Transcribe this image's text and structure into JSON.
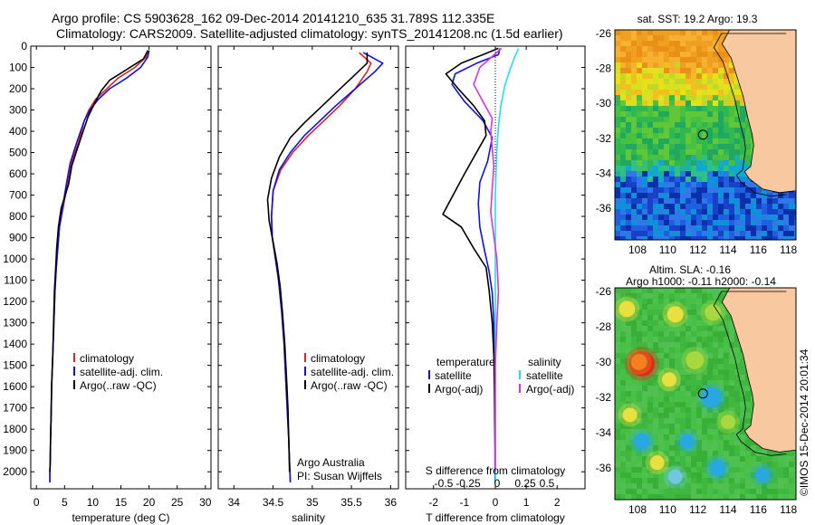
{
  "header": {
    "line1": "Argo profile: CS 5903628_162 09-Dec-2014 20141210_635 31.789S 112.335E",
    "line2": "Climatology: CARS2009. Satellite-adjusted climatology: synTS_20141208.nc (1.5d earlier)"
  },
  "credit": "©IMOS 15-Dec-2014 20:01:34",
  "colors": {
    "climatology": "#dd2222",
    "satellite": "#1111dd",
    "argo": "#000000",
    "salinity_satellite": "#22e0e8",
    "salinity_argo": "#dd33dd",
    "land": "#f8c8a0"
  },
  "chart_data": [
    {
      "type": "line",
      "id": "temperature",
      "xlabel": "temperature (deg C)",
      "ylabel": "",
      "xlim": [
        -1,
        31
      ],
      "ylim": [
        2080,
        0
      ],
      "xticks": [
        0,
        5,
        10,
        15,
        20,
        25,
        30
      ],
      "yticks": [
        0,
        100,
        200,
        300,
        400,
        500,
        600,
        700,
        800,
        900,
        1000,
        1100,
        1200,
        1300,
        1400,
        1500,
        1600,
        1700,
        1800,
        1900,
        2000
      ],
      "legend": [
        "climatology",
        "satellite-adj. clim.",
        "Argo(..raw -QC)"
      ],
      "series": [
        {
          "name": "climatology",
          "color": "#dd2222",
          "x": [
            19.8,
            19.5,
            17.5,
            14.5,
            12.5,
            10.5,
            9.3,
            8.5,
            7.5,
            6.2,
            5.5,
            4.8,
            4.1,
            3.8,
            3.5,
            3.3,
            3.1,
            2.9,
            2.7,
            2.6,
            2.5,
            2.45,
            2.4,
            2.4
          ],
          "y": [
            20,
            50,
            100,
            150,
            200,
            250,
            300,
            350,
            450,
            550,
            650,
            750,
            850,
            950,
            1050,
            1150,
            1300,
            1450,
            1600,
            1750,
            1850,
            1950,
            2000,
            2050
          ]
        },
        {
          "name": "satellite-adj. clim.",
          "color": "#1111dd",
          "x": [
            20.0,
            19.8,
            18.5,
            16.0,
            13.0,
            11.0,
            9.5,
            8.5,
            7.2,
            6.0,
            5.3,
            4.7,
            4.1,
            3.8,
            3.5,
            3.3,
            3.1,
            2.9,
            2.7,
            2.6,
            2.5,
            2.45,
            2.4,
            2.4
          ],
          "y": [
            20,
            50,
            100,
            150,
            200,
            250,
            300,
            350,
            450,
            550,
            650,
            750,
            850,
            950,
            1050,
            1150,
            1300,
            1450,
            1600,
            1750,
            1850,
            1950,
            2000,
            2050
          ]
        },
        {
          "name": "Argo(..raw -QC)",
          "color": "#000000",
          "x": [
            19.8,
            19.0,
            16.0,
            13.0,
            11.5,
            10.5,
            9.2,
            8.3,
            7.3,
            6.3,
            5.7,
            4.4,
            3.9,
            3.6,
            3.4,
            3.2,
            3.05,
            2.9,
            2.7,
            2.6,
            2.5,
            2.45,
            2.4
          ],
          "y": [
            20,
            60,
            110,
            160,
            210,
            260,
            330,
            400,
            480,
            560,
            650,
            760,
            850,
            950,
            1050,
            1150,
            1300,
            1450,
            1600,
            1750,
            1850,
            1950,
            2000
          ]
        }
      ]
    },
    {
      "type": "line",
      "id": "salinity",
      "xlabel": "salinity",
      "xlim": [
        33.8,
        36.1
      ],
      "ylim": [
        2080,
        0
      ],
      "xticks": [
        34,
        34.5,
        35,
        35.5,
        36
      ],
      "legend": [
        "climatology",
        "satellite-adj. clim.",
        "Argo(..raw -QC)"
      ],
      "annotation": [
        "Argo Australia",
        "PI: Susan Wijffels"
      ],
      "series": [
        {
          "name": "climatology",
          "color": "#dd2222",
          "x": [
            35.6,
            35.75,
            35.7,
            35.55,
            35.35,
            35.15,
            34.95,
            34.75,
            34.6,
            34.5,
            34.48,
            34.49,
            34.53,
            34.57,
            34.61,
            34.64,
            34.66,
            34.68,
            34.7,
            34.71,
            34.72
          ],
          "y": [
            30,
            80,
            120,
            200,
            280,
            350,
            420,
            500,
            580,
            680,
            800,
            900,
            1000,
            1100,
            1250,
            1400,
            1550,
            1700,
            1850,
            1950,
            2050
          ]
        },
        {
          "name": "satellite-adj. clim.",
          "color": "#1111dd",
          "x": [
            35.65,
            35.9,
            35.8,
            35.55,
            35.3,
            35.1,
            34.9,
            34.72,
            34.58,
            34.5,
            34.48,
            34.49,
            34.53,
            34.57,
            34.61,
            34.64,
            34.66,
            34.68,
            34.7,
            34.71,
            34.72
          ],
          "y": [
            30,
            80,
            120,
            200,
            280,
            350,
            420,
            500,
            580,
            680,
            800,
            900,
            1000,
            1100,
            1250,
            1400,
            1550,
            1700,
            1850,
            1950,
            2050
          ]
        },
        {
          "name": "Argo(..raw -QC)",
          "color": "#000000",
          "x": [
            35.7,
            35.7,
            35.5,
            35.3,
            35.1,
            34.9,
            34.72,
            34.58,
            34.48,
            34.43,
            34.45,
            34.5,
            34.55,
            34.59,
            34.62,
            34.65,
            34.67,
            34.69,
            34.7,
            34.71
          ],
          "y": [
            30,
            80,
            150,
            220,
            290,
            360,
            430,
            520,
            620,
            720,
            820,
            920,
            1020,
            1130,
            1250,
            1400,
            1550,
            1700,
            1850,
            2000
          ]
        }
      ]
    },
    {
      "type": "line",
      "id": "difference",
      "xlabel": "T difference from climatology",
      "xlabel_top": "S difference from climatology",
      "xlim": [
        -2.9,
        2.9
      ],
      "ylim": [
        2080,
        0
      ],
      "xticks": [
        -2,
        -1,
        0,
        1,
        2
      ],
      "s_ticks": [
        "-0.5",
        "-0.25",
        "0",
        "0.25",
        "0.5"
      ],
      "legend_temperature": [
        "temperature",
        "satellite",
        "Argo(-adj)"
      ],
      "legend_salinity": [
        "salinity",
        "satellite",
        "Argo(-adj)"
      ],
      "series": [
        {
          "name": "temperature satellite",
          "color": "#1111dd",
          "x": [
            0.15,
            0.1,
            -0.6,
            -1.3,
            -1.4,
            -1.0,
            -0.4,
            -0.1,
            -0.25,
            -0.5,
            -0.55,
            -0.5,
            -0.35,
            -0.2,
            -0.1,
            -0.05,
            -0.03,
            -0.02,
            -0.01,
            -0.01,
            -0.01
          ],
          "y": [
            10,
            40,
            80,
            130,
            180,
            260,
            350,
            430,
            540,
            640,
            740,
            850,
            960,
            1060,
            1160,
            1300,
            1450,
            1600,
            1750,
            1900,
            2050
          ]
        },
        {
          "name": "temperature Argo(-adj)",
          "color": "#000000",
          "x": [
            0.1,
            -0.4,
            -1.1,
            -1.6,
            -1.2,
            -0.7,
            -0.35,
            -0.3,
            -1.0,
            -1.7,
            -1.1,
            -0.7,
            -0.3,
            -0.2,
            -0.1,
            -0.05,
            -0.03,
            -0.02,
            -0.01,
            -0.01
          ],
          "y": [
            10,
            40,
            80,
            130,
            200,
            280,
            350,
            420,
            600,
            790,
            850,
            950,
            1040,
            1150,
            1300,
            1450,
            1600,
            1750,
            1900,
            2000
          ]
        },
        {
          "name": "salinity satellite",
          "color": "#22e0e8",
          "x": [
            0.75,
            0.6,
            0.45,
            0.3,
            0.18,
            0.1,
            0.05,
            0.02,
            0.0,
            0.0,
            0.0,
            0.0,
            0.0,
            0.0,
            0.0,
            0.0,
            0.0
          ],
          "y": [
            10,
            60,
            120,
            190,
            280,
            380,
            480,
            600,
            700,
            850,
            1000,
            1200,
            1400,
            1600,
            1800,
            1950,
            2050
          ]
        },
        {
          "name": "salinity Argo(-adj)",
          "color": "#dd33dd",
          "x": [
            0.2,
            -0.5,
            -0.7,
            -0.4,
            -0.1,
            -0.15,
            -0.1,
            -0.05,
            -0.15,
            0.05,
            0.1,
            0.05,
            0.0,
            0.0,
            0.0
          ],
          "y": [
            10,
            100,
            180,
            260,
            340,
            400,
            480,
            560,
            780,
            1000,
            1150,
            1300,
            1500,
            1800,
            2000
          ]
        }
      ]
    },
    {
      "type": "heatmap",
      "id": "sst_map",
      "title": "sat. SST: 19.2  Argo: 19.3",
      "xlim": [
        106.5,
        118.5
      ],
      "ylim": [
        -37.8,
        -25.8
      ],
      "xticks": [
        108,
        110,
        112,
        114,
        116,
        118
      ],
      "yticks": [
        -26,
        -28,
        -30,
        -32,
        -34,
        -36
      ],
      "marker": {
        "lon": 112.335,
        "lat": -31.789
      }
    },
    {
      "type": "heatmap",
      "id": "sla_map",
      "title_lines": [
        "Altim. SLA: -0.16",
        "Argo h1000: -0.11  h2000: -0.14"
      ],
      "xlim": [
        106.5,
        118.5
      ],
      "ylim": [
        -37.8,
        -25.8
      ],
      "xticks": [
        108,
        110,
        112,
        114,
        116,
        118
      ],
      "yticks": [
        -26,
        -28,
        -30,
        -32,
        -34,
        -36
      ],
      "marker": {
        "lon": 112.335,
        "lat": -31.789
      }
    }
  ]
}
